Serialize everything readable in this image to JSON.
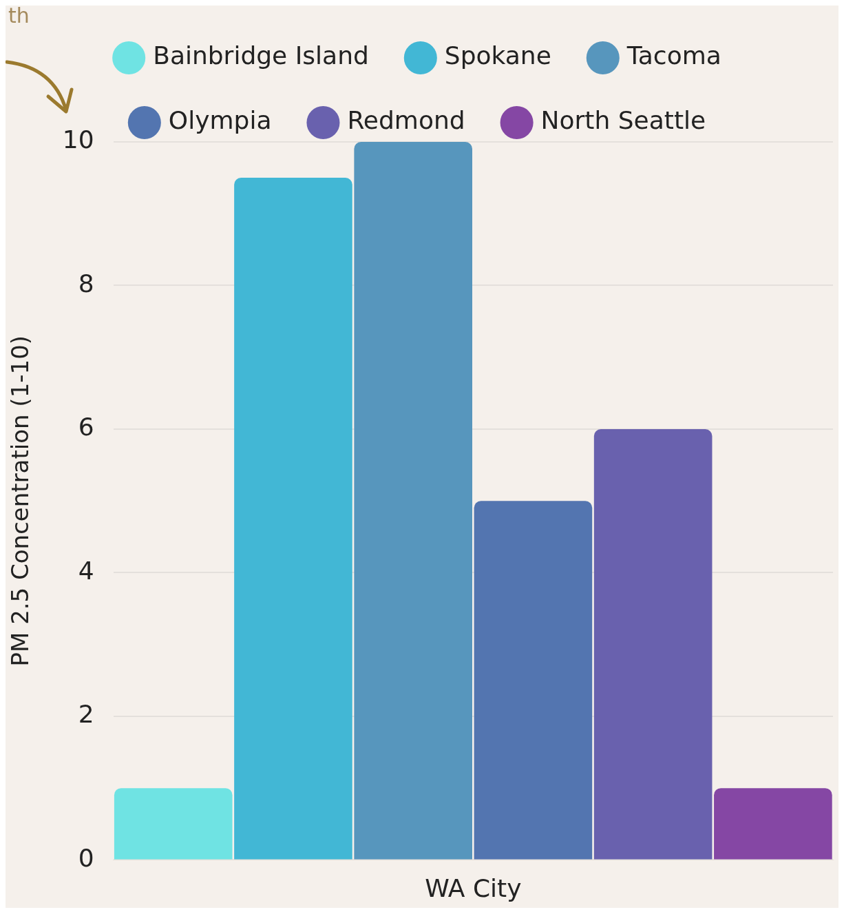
{
  "chart_data": {
    "type": "bar",
    "xlabel": "WA City",
    "ylabel": "PM 2.5 Concentration (1-10)",
    "annotations": [
      "th"
    ],
    "categories": [
      null
    ],
    "series": [
      {
        "name": "Bainbridge Island",
        "color": "#6fe3e3",
        "values": [
          1
        ]
      },
      {
        "name": "Spokane",
        "color": "#42b7d5",
        "values": [
          9.5
        ]
      },
      {
        "name": "Tacoma",
        "color": "#5796bd",
        "values": [
          10
        ]
      },
      {
        "name": "Olympia",
        "color": "#5375b0",
        "values": [
          5
        ]
      },
      {
        "name": "Redmond",
        "color": "#6961ae",
        "values": [
          6
        ]
      },
      {
        "name": "North Seattle",
        "color": "#8547a4",
        "values": [
          1
        ]
      }
    ],
    "ylim": [
      0,
      10
    ],
    "yticks": [
      0,
      2,
      4,
      6,
      8,
      10
    ],
    "grid": "y",
    "legend": "top"
  }
}
